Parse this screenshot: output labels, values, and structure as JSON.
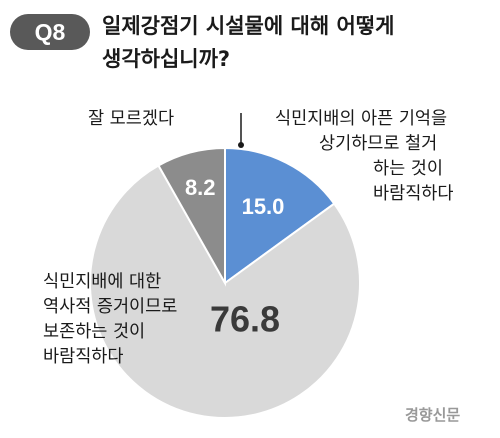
{
  "badge": "Q8",
  "title_line1": "일제강점기 시설물에 대해 어떻게",
  "title_line2": "생각하십니까?",
  "chart_data": {
    "type": "pie",
    "slices": [
      {
        "label_lines": [
          "식민지배의 아픈 기억을",
          "상기하므로 철거",
          "하는 것이",
          "바람직하다"
        ],
        "value": 15.0,
        "display": "15.0",
        "color": "#5b8fd3"
      },
      {
        "label_lines": [
          "식민지배에 대한",
          "역사적 증거이므로",
          "보존하는 것이",
          "바람직하다"
        ],
        "value": 76.8,
        "display": "76.8",
        "color": "#d9d9d9"
      },
      {
        "label_lines": [
          "잘 모르겠다"
        ],
        "value": 8.2,
        "display": "8.2",
        "color": "#8c8c8c"
      }
    ]
  },
  "credit": "경향신문"
}
